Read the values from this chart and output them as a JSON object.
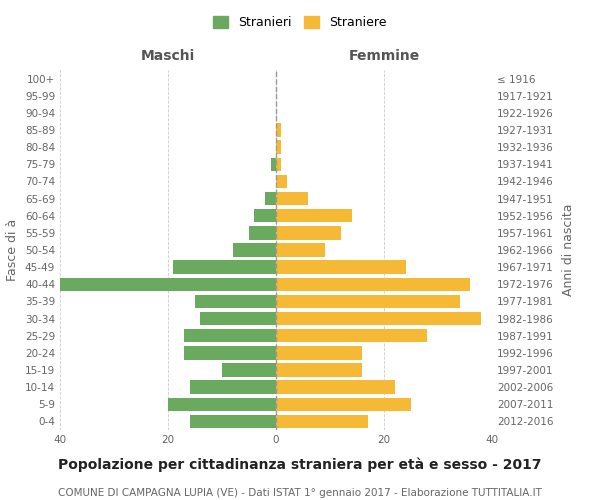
{
  "age_groups_bottom_to_top": [
    "0-4",
    "5-9",
    "10-14",
    "15-19",
    "20-24",
    "25-29",
    "30-34",
    "35-39",
    "40-44",
    "45-49",
    "50-54",
    "55-59",
    "60-64",
    "65-69",
    "70-74",
    "75-79",
    "80-84",
    "85-89",
    "90-94",
    "95-99",
    "100+"
  ],
  "birth_years_bottom_to_top": [
    "2012-2016",
    "2007-2011",
    "2002-2006",
    "1997-2001",
    "1992-1996",
    "1987-1991",
    "1982-1986",
    "1977-1981",
    "1972-1976",
    "1967-1971",
    "1962-1966",
    "1957-1961",
    "1952-1956",
    "1947-1951",
    "1942-1946",
    "1937-1941",
    "1932-1936",
    "1927-1931",
    "1922-1926",
    "1917-1921",
    "≤ 1916"
  ],
  "maschi_bottom_to_top": [
    16,
    20,
    16,
    10,
    17,
    17,
    14,
    15,
    40,
    19,
    8,
    5,
    4,
    2,
    0,
    1,
    0,
    0,
    0,
    0,
    0
  ],
  "femmine_bottom_to_top": [
    17,
    25,
    22,
    16,
    16,
    28,
    38,
    34,
    36,
    24,
    9,
    12,
    14,
    6,
    2,
    1,
    1,
    1,
    0,
    0,
    0
  ],
  "color_maschi": "#6aaa5e",
  "color_femmine": "#f5b935",
  "xlim": 40,
  "xlabel_maschi": "Maschi",
  "xlabel_femmine": "Femmine",
  "ylabel": "Fasce di à",
  "ylabel_right": "Anni di nascita",
  "legend_maschi": "Stranieri",
  "legend_femmine": "Straniere",
  "title": "Popolazione per cittadinanza straniera per età e sesso - 2017",
  "subtitle": "COMUNE DI CAMPAGNA LUPIA (VE) - Dati ISTAT 1° gennaio 2017 - Elaborazione TUTTITALIA.IT",
  "title_fontsize": 10,
  "subtitle_fontsize": 7.5,
  "axis_label_fontsize": 9,
  "header_fontsize": 10,
  "tick_fontsize": 7.5,
  "legend_fontsize": 9,
  "bg_color": "#ffffff",
  "grid_color": "#cccccc",
  "vline_color": "#999999"
}
